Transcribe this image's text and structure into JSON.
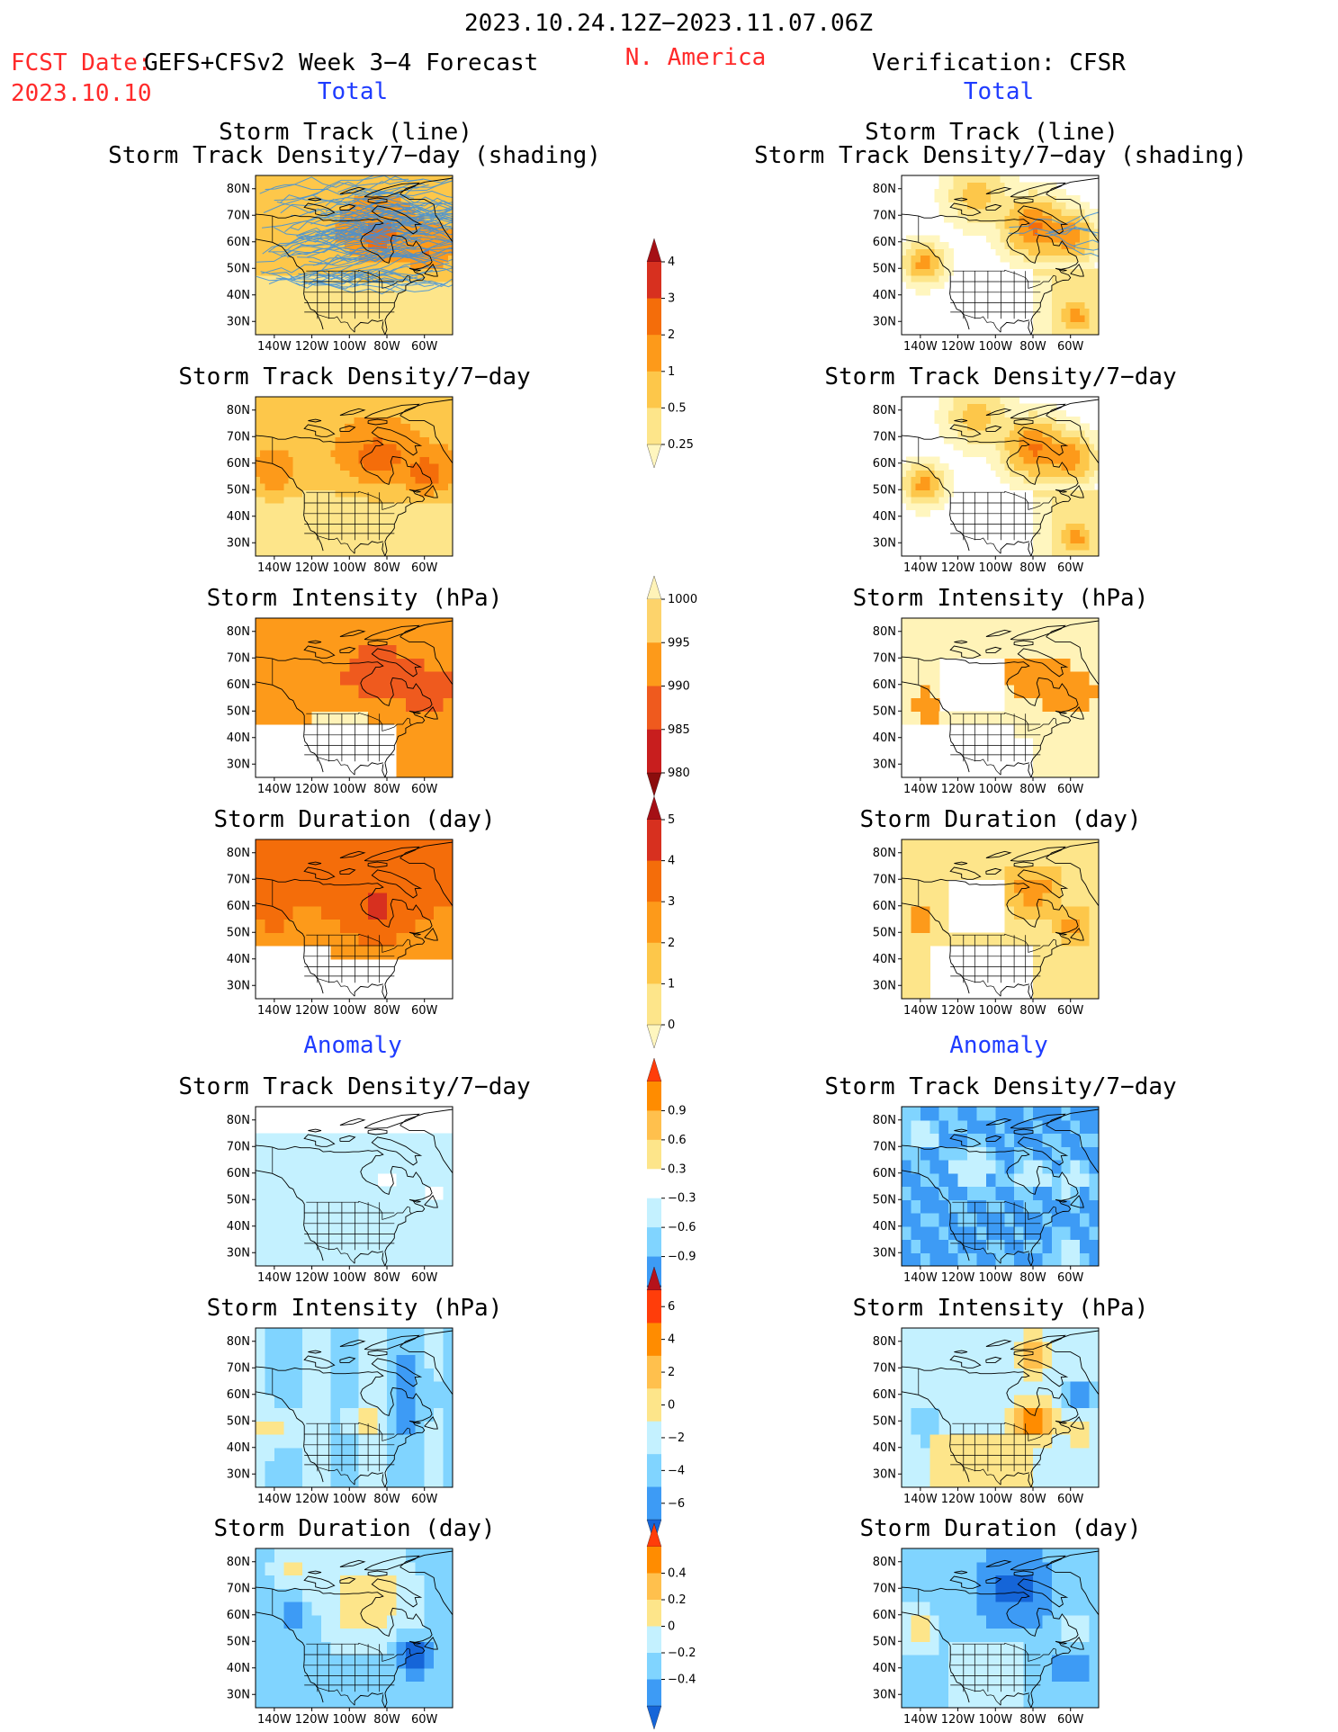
{
  "header": {
    "date_range": "2023.10.24.12Z−2023.11.07.06Z",
    "fcst_date_label": "FCST Date:",
    "fcst_desc": "GEFS+CFSv2 Week 3−4 Forecast",
    "fcst_date": "2023.10.10",
    "region": "N. America",
    "verification": "Verification: CFSR",
    "total_left": "Total",
    "total_right": "Total",
    "anomaly_left": "Anomaly",
    "anomaly_right": "Anomaly"
  },
  "titles": {
    "p1a": "Storm Track (line)",
    "p1b": "Storm Track Density/7−day (shading)",
    "p2": "Storm Track Density/7−day",
    "p3": "Storm Intensity (hPa)",
    "p4": "Storm Duration (day)",
    "p5": "Storm Track Density/7−day",
    "p6": "Storm Intensity (hPa)",
    "p7": "Storm Duration (day)"
  },
  "axes": {
    "lat_labels": [
      "80N",
      "70N",
      "60N",
      "50N",
      "40N",
      "30N"
    ],
    "lon_labels": [
      "140W",
      "120W",
      "100W",
      "80W",
      "60W"
    ]
  },
  "colorbars": {
    "density": {
      "labels": [
        "4",
        "3",
        "2",
        "1",
        "0.5",
        "0.25"
      ],
      "colors": [
        "#a50f15",
        "#d7301f",
        "#f46d0a",
        "#fd9a1a",
        "#fdc74a",
        "#fde58a",
        "#fff6bf"
      ]
    },
    "intensity": {
      "labels": [
        "1000",
        "995",
        "990",
        "985",
        "980"
      ],
      "colors": [
        "#fff3b8",
        "#fdd36b",
        "#fd9a1a",
        "#ef5a1e",
        "#c81e1e",
        "#8b0d0d"
      ]
    },
    "duration": {
      "labels": [
        "5",
        "4",
        "3",
        "2",
        "1",
        "0"
      ],
      "colors": [
        "#a50f15",
        "#d7301f",
        "#f46d0a",
        "#fd9a1a",
        "#fdc74a",
        "#fde58a",
        "#fff6bf"
      ]
    },
    "density_anom": {
      "labels": [
        "0.9",
        "0.6",
        "0.3",
        "−0.3",
        "−0.6",
        "−0.9"
      ],
      "colors": [
        "#ff3d0a",
        "#ff8c00",
        "#ffc04d",
        "#fde58a",
        "#ffffff",
        "#c4f1ff",
        "#80d4ff",
        "#3d9bf5",
        "#1565d8"
      ]
    },
    "intensity_anom": {
      "labels": [
        "6",
        "4",
        "2",
        "0",
        "−2",
        "−4",
        "−6"
      ],
      "colors": [
        "#b5121b",
        "#ff3d0a",
        "#ff8c00",
        "#ffc04d",
        "#fde58a",
        "#c4f1ff",
        "#80d4ff",
        "#3d9bf5",
        "#1565d8"
      ]
    },
    "duration_anom": {
      "labels": [
        "0.4",
        "0.2",
        "0",
        "−0.2",
        "−0.4"
      ],
      "colors": [
        "#ff3d0a",
        "#ff8c00",
        "#ffc04d",
        "#fde58a",
        "#c4f1ff",
        "#80d4ff",
        "#3d9bf5",
        "#1565d8"
      ]
    }
  },
  "colors": {
    "title_red": "#ff2a2a",
    "title_blue": "#1f3cff",
    "track_line": "#3a8fe0"
  }
}
